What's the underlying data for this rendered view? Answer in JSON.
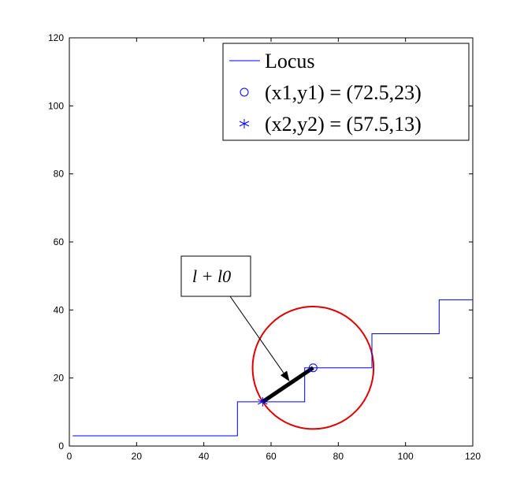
{
  "chart_data": {
    "type": "line",
    "xlim": [
      0,
      120
    ],
    "ylim": [
      0,
      120
    ],
    "x_ticks": [
      0,
      20,
      40,
      60,
      80,
      100,
      120
    ],
    "y_ticks": [
      0,
      20,
      40,
      60,
      80,
      100,
      120
    ],
    "grid": false,
    "legend_placement": "top-right",
    "series": [
      {
        "name": "Locus",
        "style": "step-line",
        "color": "#0000ff",
        "x": [
          1,
          50,
          50,
          70,
          70,
          90,
          90,
          110,
          110,
          120
        ],
        "y": [
          3,
          3,
          13,
          13,
          23,
          23,
          33,
          33,
          43,
          43
        ]
      },
      {
        "name": "(x1,y1) = (72.5,23)",
        "style": "circle-marker",
        "color": "#0000ff",
        "x": [
          72.5
        ],
        "y": [
          23
        ]
      },
      {
        "name": "(x2,y2) = (57.5,13)",
        "style": "star-marker",
        "color": "#0000ff",
        "x": [
          57.5
        ],
        "y": [
          13
        ]
      }
    ],
    "circle": {
      "cx": 72.5,
      "cy": 23,
      "r": 18,
      "color": "#dd0000"
    },
    "segment": {
      "x1": 57.5,
      "y1": 13,
      "x2": 72.5,
      "y2": 23,
      "color": "#000000"
    },
    "annotation": {
      "text": "l + l0",
      "arrow_target": [
        65.5,
        19
      ]
    }
  }
}
